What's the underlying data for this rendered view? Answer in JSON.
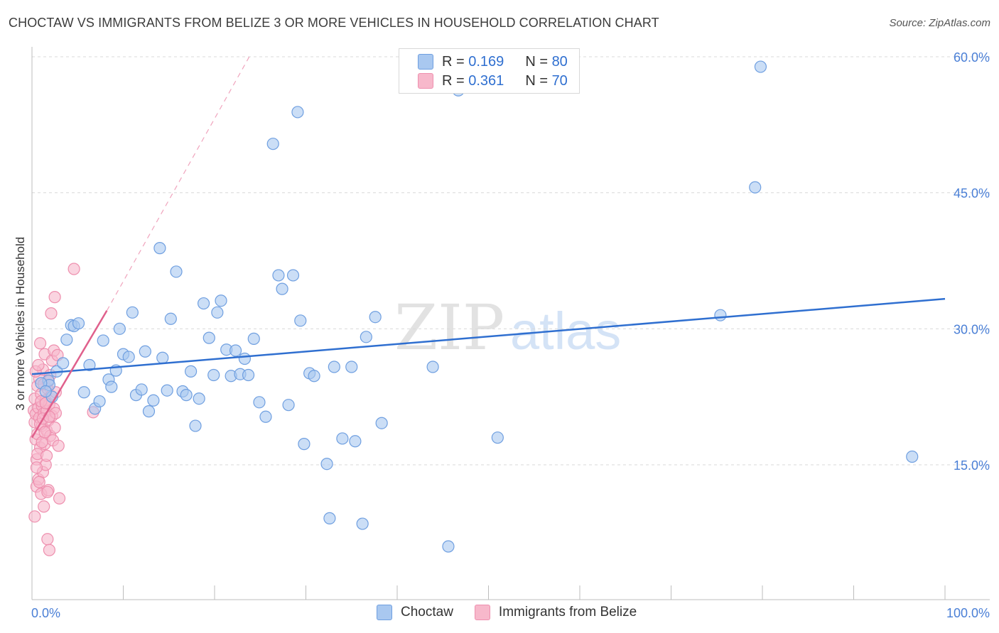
{
  "header": {
    "title": "CHOCTAW VS IMMIGRANTS FROM BELIZE 3 OR MORE VEHICLES IN HOUSEHOLD CORRELATION CHART",
    "source": "Source: ZipAtlas.com"
  },
  "watermark": {
    "zip": "ZIP",
    "atlas": "atlas"
  },
  "legend": {
    "rows": [
      {
        "r_label": "R = ",
        "r_value": "0.169",
        "n_label": "N = ",
        "n_value": "80",
        "color": "#a9c8f0"
      },
      {
        "r_label": "R = ",
        "r_value": "0.361",
        "n_label": "N = ",
        "n_value": "70",
        "color": "#f7b8cb"
      }
    ]
  },
  "bottom_legend": {
    "items": [
      {
        "label": "Choctaw",
        "color": "#a9c8f0"
      },
      {
        "label": "Immigrants from Belize",
        "color": "#f7b8cb"
      }
    ]
  },
  "chart_data": {
    "type": "scatter",
    "title": "CHOCTAW VS IMMIGRANTS FROM BELIZE 3 OR MORE VEHICLES IN HOUSEHOLD CORRELATION CHART",
    "xlabel": "",
    "ylabel": "3 or more Vehicles in Household",
    "xlim": [
      0,
      100
    ],
    "ylim": [
      0,
      62
    ],
    "x_tick_labels": [
      "0.0%",
      "100.0%"
    ],
    "y_ticks": [
      15,
      30,
      45,
      60
    ],
    "y_tick_labels": [
      "15.0%",
      "30.0%",
      "45.0%",
      "60.0%"
    ],
    "grid": true,
    "series": [
      {
        "name": "Choctaw",
        "color": "#a9c8f0",
        "stroke": "#6f9fe0",
        "trend": {
          "x": [
            0,
            100
          ],
          "y": [
            25.0,
            33.3
          ],
          "color": "#2f6fd0",
          "style": "solid"
        },
        "points": [
          [
            1.8,
            24.3
          ],
          [
            1.9,
            23.8
          ],
          [
            2.2,
            22.5
          ],
          [
            2.7,
            25.3
          ],
          [
            3.4,
            26.2
          ],
          [
            3.8,
            28.8
          ],
          [
            4.3,
            30.4
          ],
          [
            4.6,
            30.3
          ],
          [
            5.1,
            30.6
          ],
          [
            5.7,
            23.0
          ],
          [
            6.3,
            26.0
          ],
          [
            6.9,
            21.2
          ],
          [
            7.4,
            22.0
          ],
          [
            7.8,
            28.7
          ],
          [
            8.4,
            24.4
          ],
          [
            8.7,
            23.6
          ],
          [
            9.2,
            25.4
          ],
          [
            9.6,
            30.0
          ],
          [
            10.0,
            27.2
          ],
          [
            10.6,
            26.9
          ],
          [
            11.0,
            31.8
          ],
          [
            11.4,
            22.7
          ],
          [
            12.0,
            23.3
          ],
          [
            12.4,
            27.5
          ],
          [
            12.8,
            20.9
          ],
          [
            13.3,
            22.1
          ],
          [
            14.0,
            38.9
          ],
          [
            14.3,
            26.8
          ],
          [
            14.8,
            23.2
          ],
          [
            15.2,
            31.1
          ],
          [
            15.8,
            36.3
          ],
          [
            16.5,
            23.1
          ],
          [
            16.9,
            22.7
          ],
          [
            17.4,
            25.3
          ],
          [
            17.9,
            19.3
          ],
          [
            18.3,
            22.3
          ],
          [
            18.8,
            32.8
          ],
          [
            19.4,
            29.0
          ],
          [
            19.9,
            24.9
          ],
          [
            20.3,
            31.8
          ],
          [
            20.7,
            33.1
          ],
          [
            21.3,
            27.7
          ],
          [
            21.8,
            24.8
          ],
          [
            22.3,
            27.6
          ],
          [
            22.8,
            25.0
          ],
          [
            23.3,
            26.7
          ],
          [
            23.7,
            24.9
          ],
          [
            24.3,
            28.9
          ],
          [
            24.9,
            21.9
          ],
          [
            25.6,
            20.3
          ],
          [
            26.4,
            50.4
          ],
          [
            27.0,
            35.9
          ],
          [
            27.4,
            34.4
          ],
          [
            28.1,
            21.6
          ],
          [
            28.6,
            35.9
          ],
          [
            29.1,
            53.9
          ],
          [
            29.4,
            30.9
          ],
          [
            29.8,
            17.3
          ],
          [
            30.4,
            25.1
          ],
          [
            30.9,
            24.8
          ],
          [
            32.3,
            15.1
          ],
          [
            32.6,
            9.1
          ],
          [
            33.1,
            25.8
          ],
          [
            34.0,
            17.9
          ],
          [
            35.0,
            25.8
          ],
          [
            35.4,
            17.6
          ],
          [
            36.2,
            8.5
          ],
          [
            36.6,
            29.1
          ],
          [
            37.6,
            31.3
          ],
          [
            38.3,
            19.6
          ],
          [
            43.9,
            25.8
          ],
          [
            45.6,
            6.0
          ],
          [
            46.7,
            56.3
          ],
          [
            51.0,
            18.0
          ],
          [
            75.4,
            31.5
          ],
          [
            79.2,
            45.6
          ],
          [
            79.8,
            58.9
          ],
          [
            96.4,
            15.9
          ],
          [
            1.0,
            24.0
          ],
          [
            1.5,
            23.1
          ]
        ]
      },
      {
        "name": "Immigrants from Belize",
        "color": "#f7b8cb",
        "stroke": "#ee8fae",
        "trend": {
          "x": [
            0,
            8.2
          ],
          "y": [
            18.0,
            32.0
          ],
          "color": "#e0608c",
          "style": "solid",
          "extension": {
            "x": [
              8.2,
              23.8
            ],
            "y": [
              32.0,
              60.0
            ],
            "style": "dashed"
          }
        },
        "points": [
          [
            0.2,
            21.0
          ],
          [
            0.3,
            19.7
          ],
          [
            0.3,
            22.3
          ],
          [
            0.4,
            17.8
          ],
          [
            0.4,
            20.6
          ],
          [
            0.5,
            12.6
          ],
          [
            0.5,
            15.6
          ],
          [
            0.6,
            23.7
          ],
          [
            0.6,
            18.4
          ],
          [
            0.7,
            21.3
          ],
          [
            0.7,
            13.4
          ],
          [
            0.8,
            20.2
          ],
          [
            0.8,
            24.5
          ],
          [
            0.9,
            16.9
          ],
          [
            0.9,
            28.4
          ],
          [
            1.0,
            22.8
          ],
          [
            1.0,
            11.8
          ],
          [
            1.1,
            19.3
          ],
          [
            1.1,
            21.5
          ],
          [
            1.2,
            14.2
          ],
          [
            1.2,
            25.5
          ],
          [
            1.3,
            20.7
          ],
          [
            1.3,
            10.4
          ],
          [
            1.4,
            17.3
          ],
          [
            1.4,
            27.2
          ],
          [
            1.5,
            22.1
          ],
          [
            1.5,
            15.0
          ],
          [
            1.6,
            18.8
          ],
          [
            1.6,
            20.9
          ],
          [
            1.7,
            6.8
          ],
          [
            1.7,
            23.4
          ],
          [
            1.8,
            12.2
          ],
          [
            1.8,
            19.9
          ],
          [
            1.9,
            21.7
          ],
          [
            1.9,
            5.6
          ],
          [
            2.0,
            24.9
          ],
          [
            2.0,
            18.2
          ],
          [
            2.1,
            22.6
          ],
          [
            2.1,
            31.7
          ],
          [
            2.2,
            20.4
          ],
          [
            2.2,
            26.5
          ],
          [
            2.3,
            17.7
          ],
          [
            2.4,
            27.6
          ],
          [
            2.4,
            21.2
          ],
          [
            2.5,
            19.1
          ],
          [
            2.5,
            33.5
          ],
          [
            2.6,
            23.0
          ],
          [
            2.6,
            20.7
          ],
          [
            2.8,
            27.1
          ],
          [
            2.9,
            17.1
          ],
          [
            3.0,
            11.3
          ],
          [
            4.6,
            36.6
          ],
          [
            6.7,
            20.8
          ],
          [
            0.3,
            9.3
          ],
          [
            0.4,
            25.3
          ],
          [
            0.5,
            14.7
          ],
          [
            0.6,
            16.2
          ],
          [
            0.7,
            26.0
          ],
          [
            0.8,
            13.1
          ],
          [
            0.9,
            19.5
          ],
          [
            1.0,
            22.0
          ],
          [
            1.1,
            17.5
          ],
          [
            1.2,
            20.1
          ],
          [
            1.3,
            23.9
          ],
          [
            1.4,
            18.6
          ],
          [
            1.5,
            21.8
          ],
          [
            1.6,
            16.0
          ],
          [
            1.7,
            12.0
          ],
          [
            1.8,
            24.2
          ],
          [
            1.9,
            20.3
          ]
        ]
      }
    ]
  }
}
